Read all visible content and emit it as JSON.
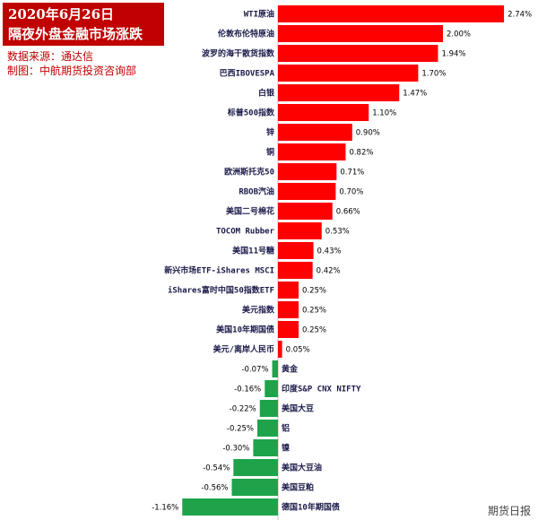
{
  "header": {
    "title_line1": "2020年6月26日",
    "title_line2": "隔夜外盘金融市场涨跌",
    "source": "数据来源：通达信",
    "maker": "制图：中航期货投资咨询部"
  },
  "watermark": "期货日报",
  "colors": {
    "positive": "#ff0000",
    "negative": "#1ea34a",
    "title_bg": "#c00000"
  },
  "chart_data": {
    "type": "bar",
    "orientation": "horizontal",
    "categories": [
      "WTI原油",
      "伦敦布伦特原油",
      "波罗的海干散货指数",
      "巴西IBOVESPA",
      "白银",
      "标普500指数",
      "锌",
      "铜",
      "欧洲斯托克50",
      "RBOB汽油",
      "美国二号棉花",
      "TOCOM Rubber",
      "美国11号糖",
      "新兴市场ETF-iShares MSCI",
      "iShares富时中国50指数ETF",
      "美元指数",
      "美国10年期国债",
      "美元/离岸人民币",
      "黄金",
      "印度S&P CNX NIFTY",
      "美国大豆",
      "铝",
      "镍",
      "美国大豆油",
      "美国豆粕",
      "德国10年期国债"
    ],
    "values": [
      2.74,
      2.0,
      1.94,
      1.7,
      1.47,
      1.1,
      0.9,
      0.82,
      0.71,
      0.7,
      0.66,
      0.53,
      0.43,
      0.42,
      0.25,
      0.25,
      0.25,
      0.05,
      -0.07,
      -0.16,
      -0.22,
      -0.25,
      -0.3,
      -0.54,
      -0.56,
      -1.16
    ],
    "value_labels": [
      "2.74%",
      "2.00%",
      "1.94%",
      "1.70%",
      "1.47%",
      "1.10%",
      "0.90%",
      "0.82%",
      "0.71%",
      "0.70%",
      "0.66%",
      "0.53%",
      "0.43%",
      "0.42%",
      "0.25%",
      "0.25%",
      "0.25%",
      "0.05%",
      "-0.07%",
      "-0.16%",
      "-0.22%",
      "-0.25%",
      "-0.30%",
      "-0.54%",
      "-0.56%",
      "-1.16%"
    ]
  }
}
